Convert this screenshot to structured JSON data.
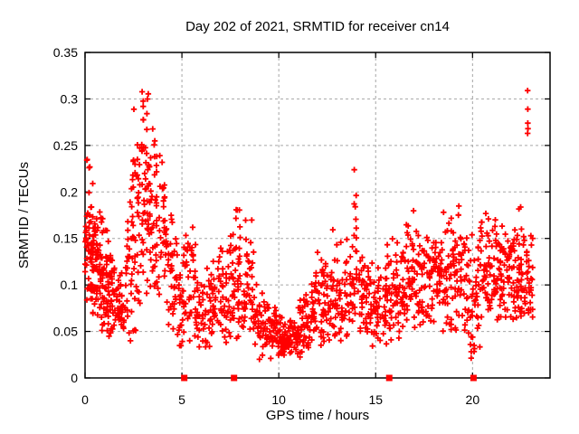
{
  "chart_data": {
    "type": "scatter",
    "title": "Day 202 of 2021, SRMTID for receiver cn14",
    "xlabel": "GPS time / hours",
    "ylabel": "SRMTID / TECUs",
    "xlim": [
      0,
      24
    ],
    "ylim": [
      0,
      0.35
    ],
    "xtick_values": [
      0,
      5,
      10,
      15,
      20
    ],
    "xtick_labels": [
      "0",
      "5",
      "10",
      "15",
      "20"
    ],
    "ytick_values": [
      0,
      0.05,
      0.1,
      0.15,
      0.2,
      0.25,
      0.3,
      0.35
    ],
    "ytick_labels": [
      "0",
      "0.05",
      "0.1",
      "0.15",
      "0.2",
      "0.25",
      "0.3",
      "0.35"
    ],
    "grid": {
      "show": true,
      "style": "dashed",
      "color": "#a6a6a6"
    },
    "border_color": "#000000",
    "marker": {
      "shape": "plus",
      "color": "#ff0000",
      "size": 7
    },
    "legend": "none",
    "seed": 20210202,
    "point_bins_format": [
      "hour_start",
      "hour_end",
      "count",
      "y_center",
      "y_sigma",
      "y_min",
      "y_max"
    ],
    "point_bins": [
      [
        0.0,
        0.3,
        40,
        0.155,
        0.045,
        0.08,
        0.235
      ],
      [
        0.3,
        0.6,
        45,
        0.13,
        0.035,
        0.06,
        0.21
      ],
      [
        0.6,
        0.9,
        42,
        0.115,
        0.032,
        0.05,
        0.19
      ],
      [
        0.9,
        1.2,
        38,
        0.105,
        0.035,
        0.05,
        0.22
      ],
      [
        1.2,
        1.5,
        30,
        0.09,
        0.027,
        0.04,
        0.15
      ],
      [
        1.5,
        1.8,
        24,
        0.08,
        0.025,
        0.035,
        0.14
      ],
      [
        1.8,
        2.1,
        20,
        0.075,
        0.022,
        0.03,
        0.12
      ],
      [
        2.1,
        2.4,
        22,
        0.1,
        0.045,
        0.04,
        0.22
      ],
      [
        2.4,
        2.7,
        30,
        0.17,
        0.06,
        0.05,
        0.3
      ],
      [
        2.7,
        3.0,
        34,
        0.2,
        0.06,
        0.07,
        0.31
      ],
      [
        3.0,
        3.3,
        34,
        0.195,
        0.06,
        0.07,
        0.31
      ],
      [
        3.3,
        3.6,
        28,
        0.17,
        0.055,
        0.06,
        0.29
      ],
      [
        3.6,
        3.9,
        24,
        0.15,
        0.05,
        0.06,
        0.28
      ],
      [
        3.9,
        4.2,
        24,
        0.16,
        0.05,
        0.05,
        0.235
      ],
      [
        4.2,
        4.5,
        20,
        0.11,
        0.035,
        0.04,
        0.18
      ],
      [
        4.5,
        4.8,
        20,
        0.09,
        0.03,
        0.04,
        0.16
      ],
      [
        4.8,
        5.1,
        20,
        0.08,
        0.03,
        0.03,
        0.15
      ],
      [
        5.1,
        5.4,
        22,
        0.1,
        0.04,
        0.03,
        0.185
      ],
      [
        5.4,
        5.7,
        20,
        0.1,
        0.035,
        0.03,
        0.19
      ],
      [
        5.7,
        6.0,
        18,
        0.07,
        0.02,
        0.03,
        0.12
      ],
      [
        6.0,
        6.3,
        18,
        0.07,
        0.02,
        0.03,
        0.12
      ],
      [
        6.3,
        6.6,
        18,
        0.075,
        0.022,
        0.03,
        0.13
      ],
      [
        6.6,
        6.9,
        18,
        0.08,
        0.025,
        0.03,
        0.14
      ],
      [
        6.9,
        7.2,
        20,
        0.095,
        0.035,
        0.04,
        0.19
      ],
      [
        7.2,
        7.5,
        20,
        0.08,
        0.03,
        0.03,
        0.145
      ],
      [
        7.5,
        7.8,
        22,
        0.1,
        0.04,
        0.04,
        0.19
      ],
      [
        7.8,
        8.1,
        25,
        0.11,
        0.045,
        0.04,
        0.21
      ],
      [
        8.1,
        8.4,
        22,
        0.1,
        0.04,
        0.04,
        0.2
      ],
      [
        8.4,
        8.7,
        20,
        0.09,
        0.035,
        0.03,
        0.17
      ],
      [
        8.7,
        9.0,
        18,
        0.06,
        0.02,
        0.02,
        0.11
      ],
      [
        9.0,
        9.3,
        20,
        0.055,
        0.018,
        0.02,
        0.1
      ],
      [
        9.3,
        9.6,
        20,
        0.05,
        0.016,
        0.02,
        0.09
      ],
      [
        9.6,
        9.9,
        22,
        0.05,
        0.015,
        0.02,
        0.085
      ],
      [
        9.9,
        10.2,
        24,
        0.045,
        0.014,
        0.015,
        0.08
      ],
      [
        10.2,
        10.5,
        24,
        0.045,
        0.013,
        0.015,
        0.075
      ],
      [
        10.5,
        10.8,
        24,
        0.04,
        0.012,
        0.015,
        0.07
      ],
      [
        10.8,
        11.1,
        24,
        0.045,
        0.015,
        0.02,
        0.08
      ],
      [
        11.1,
        11.4,
        22,
        0.06,
        0.02,
        0.02,
        0.11
      ],
      [
        11.4,
        11.7,
        22,
        0.07,
        0.025,
        0.03,
        0.13
      ],
      [
        11.7,
        12.0,
        22,
        0.08,
        0.025,
        0.03,
        0.14
      ],
      [
        12.0,
        12.3,
        22,
        0.085,
        0.03,
        0.03,
        0.155
      ],
      [
        12.3,
        12.6,
        20,
        0.08,
        0.025,
        0.03,
        0.14
      ],
      [
        12.6,
        12.9,
        20,
        0.085,
        0.03,
        0.04,
        0.16
      ],
      [
        12.9,
        13.2,
        20,
        0.09,
        0.03,
        0.04,
        0.16
      ],
      [
        13.2,
        13.5,
        18,
        0.08,
        0.025,
        0.04,
        0.13
      ],
      [
        13.5,
        13.8,
        18,
        0.085,
        0.03,
        0.04,
        0.15
      ],
      [
        13.8,
        14.1,
        24,
        0.12,
        0.05,
        0.05,
        0.23
      ],
      [
        14.1,
        14.4,
        20,
        0.09,
        0.03,
        0.04,
        0.15
      ],
      [
        14.4,
        14.7,
        20,
        0.085,
        0.025,
        0.04,
        0.13
      ],
      [
        14.7,
        15.0,
        20,
        0.08,
        0.025,
        0.03,
        0.13
      ],
      [
        15.0,
        15.3,
        20,
        0.075,
        0.025,
        0.03,
        0.12
      ],
      [
        15.3,
        15.6,
        20,
        0.08,
        0.025,
        0.03,
        0.13
      ],
      [
        15.6,
        15.9,
        22,
        0.09,
        0.03,
        0.04,
        0.15
      ],
      [
        15.9,
        16.2,
        22,
        0.095,
        0.03,
        0.04,
        0.15
      ],
      [
        16.2,
        16.5,
        22,
        0.1,
        0.03,
        0.05,
        0.16
      ],
      [
        16.5,
        16.8,
        22,
        0.105,
        0.033,
        0.05,
        0.175
      ],
      [
        16.8,
        17.1,
        22,
        0.11,
        0.033,
        0.05,
        0.18
      ],
      [
        17.1,
        17.4,
        22,
        0.105,
        0.033,
        0.05,
        0.17
      ],
      [
        17.4,
        17.7,
        22,
        0.11,
        0.033,
        0.05,
        0.18
      ],
      [
        17.7,
        18.0,
        22,
        0.115,
        0.038,
        0.05,
        0.19
      ],
      [
        18.0,
        18.3,
        22,
        0.11,
        0.033,
        0.05,
        0.18
      ],
      [
        18.3,
        18.6,
        22,
        0.115,
        0.035,
        0.05,
        0.19
      ],
      [
        18.6,
        18.9,
        22,
        0.11,
        0.033,
        0.05,
        0.18
      ],
      [
        18.9,
        19.2,
        22,
        0.115,
        0.038,
        0.05,
        0.19
      ],
      [
        19.2,
        19.5,
        22,
        0.115,
        0.04,
        0.05,
        0.2
      ],
      [
        19.5,
        19.8,
        20,
        0.1,
        0.038,
        0.04,
        0.18
      ],
      [
        19.8,
        20.1,
        20,
        0.09,
        0.05,
        0.02,
        0.19
      ],
      [
        20.1,
        20.4,
        20,
        0.09,
        0.04,
        0.02,
        0.16
      ],
      [
        20.4,
        20.7,
        22,
        0.12,
        0.04,
        0.06,
        0.21
      ],
      [
        20.7,
        21.0,
        22,
        0.11,
        0.033,
        0.05,
        0.18
      ],
      [
        21.0,
        21.3,
        24,
        0.11,
        0.028,
        0.06,
        0.17
      ],
      [
        21.3,
        21.6,
        24,
        0.115,
        0.028,
        0.06,
        0.18
      ],
      [
        21.6,
        21.9,
        24,
        0.11,
        0.028,
        0.06,
        0.17
      ],
      [
        21.9,
        22.2,
        24,
        0.115,
        0.032,
        0.06,
        0.19
      ],
      [
        22.2,
        22.5,
        24,
        0.12,
        0.032,
        0.06,
        0.19
      ],
      [
        22.5,
        22.8,
        24,
        0.12,
        0.037,
        0.06,
        0.195
      ],
      [
        22.8,
        23.1,
        26,
        0.1,
        0.028,
        0.06,
        0.155
      ]
    ],
    "outlier_points": [
      [
        22.84,
        0.309
      ],
      [
        22.85,
        0.289
      ],
      [
        22.85,
        0.274
      ],
      [
        22.86,
        0.268
      ],
      [
        22.84,
        0.263
      ]
    ],
    "baseline_markers": {
      "shape": "filled-square",
      "color": "#ff0000",
      "y": 0,
      "x": [
        5.12,
        7.69,
        15.7,
        20.05
      ]
    }
  }
}
